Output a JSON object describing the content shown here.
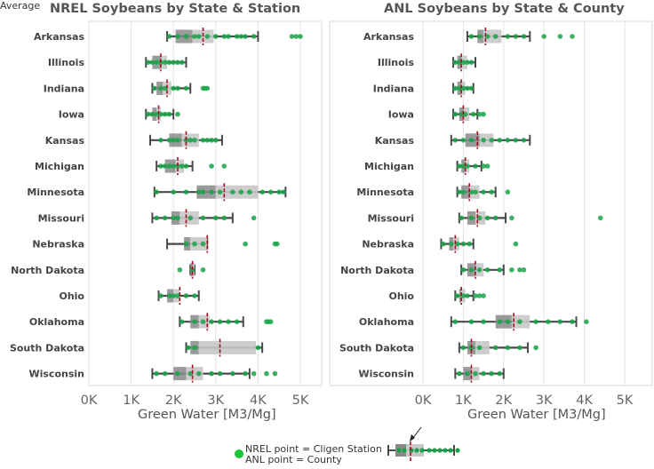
{
  "chart_data": [
    {
      "type": "boxplot",
      "title": "NREL Soybeans by State & Station",
      "xlabel": "Green Water [M3/Mg]",
      "x_ticks": [
        "0K",
        "1K",
        "2K",
        "3K",
        "4K",
        "5K"
      ],
      "xlim": [
        0,
        5300
      ],
      "grid": true,
      "rows": [
        {
          "state": "Arkansas",
          "whisker_low": 1850,
          "q1": 2050,
          "median": 2450,
          "q3": 2950,
          "whisker_high": 4000,
          "mean": 2700,
          "points": [
            1900,
            2100,
            2300,
            2500,
            2600,
            2800,
            3000,
            3200,
            3300,
            3500,
            3600,
            3700,
            3900,
            4800,
            4900,
            5000
          ]
        },
        {
          "state": "Illinois",
          "whisker_low": 1350,
          "q1": 1500,
          "median": 1700,
          "q3": 1850,
          "whisker_high": 2300,
          "mean": 1700,
          "points": [
            1400,
            1500,
            1600,
            1700,
            1800,
            1900,
            2000,
            2100,
            2200
          ]
        },
        {
          "state": "Indiana",
          "whisker_low": 1500,
          "q1": 1600,
          "median": 1750,
          "q3": 1950,
          "whisker_high": 2400,
          "mean": 1850,
          "points": [
            1550,
            1700,
            1800,
            2000,
            2100,
            2300,
            2700,
            2750,
            2800
          ]
        },
        {
          "state": "Iowa",
          "whisker_low": 1350,
          "q1": 1500,
          "median": 1600,
          "q3": 1700,
          "whisker_high": 2000,
          "mean": 1650,
          "points": [
            1400,
            1500,
            1600,
            1700,
            1800,
            1900,
            2100
          ]
        },
        {
          "state": "Kansas",
          "whisker_low": 1450,
          "q1": 1900,
          "median": 2200,
          "q3": 2600,
          "whisker_high": 3150,
          "mean": 2300,
          "points": [
            1700,
            1900,
            2000,
            2100,
            2300,
            2400,
            2500,
            2700,
            2800,
            2900,
            3000
          ]
        },
        {
          "state": "Michigan",
          "whisker_low": 1600,
          "q1": 1800,
          "median": 2050,
          "q3": 2250,
          "whisker_high": 2450,
          "mean": 2100,
          "points": [
            1700,
            1800,
            1900,
            2000,
            2100,
            2200,
            2300,
            2900,
            3200
          ]
        },
        {
          "state": "Minnesota",
          "whisker_low": 1550,
          "q1": 2550,
          "median": 3000,
          "q3": 4000,
          "whisker_high": 4650,
          "mean": 3200,
          "points": [
            1600,
            2000,
            2300,
            2600,
            2700,
            2900,
            3100,
            3400,
            3600,
            3800,
            4100,
            4300,
            4500,
            4600
          ]
        },
        {
          "state": "Missouri",
          "whisker_low": 1500,
          "q1": 1950,
          "median": 2150,
          "q3": 2600,
          "whisker_high": 3400,
          "mean": 2300,
          "points": [
            1600,
            1800,
            2000,
            2100,
            2400,
            2700,
            3000,
            3200,
            3900
          ]
        },
        {
          "state": "Nebraska",
          "whisker_low": 1850,
          "q1": 2250,
          "median": 2400,
          "q3": 2800,
          "whisker_high": 2800,
          "mean": 2800,
          "points": [
            2300,
            2500,
            2700,
            3700,
            4400,
            4450
          ]
        },
        {
          "state": "North Dakota",
          "whisker_low": 2400,
          "q1": 2400,
          "median": 2450,
          "q3": 2500,
          "whisker_high": 2500,
          "mean": 2450,
          "points": [
            2150,
            2450,
            2700
          ]
        },
        {
          "state": "Ohio",
          "whisker_low": 1650,
          "q1": 1850,
          "median": 2000,
          "q3": 2150,
          "whisker_high": 2600,
          "mean": 2150,
          "points": [
            1700,
            1900,
            2000,
            2100,
            2300,
            2500
          ]
        },
        {
          "state": "Oklahoma",
          "whisker_low": 2150,
          "q1": 2400,
          "median": 2600,
          "q3": 2850,
          "whisker_high": 3650,
          "mean": 2800,
          "points": [
            2200,
            2500,
            2700,
            2900,
            3100,
            3300,
            3500,
            4200,
            4250,
            4300
          ]
        },
        {
          "state": "South Dakota",
          "whisker_low": 2300,
          "q1": 2400,
          "median": 2600,
          "q3": 3950,
          "whisker_high": 4100,
          "mean": 3100,
          "points": [
            2350,
            2500,
            4000
          ]
        },
        {
          "state": "Wisconsin",
          "whisker_low": 1500,
          "q1": 2000,
          "median": 2300,
          "q3": 2700,
          "whisker_high": 3800,
          "mean": 2450,
          "points": [
            1600,
            1800,
            2100,
            2400,
            2600,
            2900,
            3100,
            3400,
            3700,
            3900,
            4200,
            4400
          ]
        }
      ]
    },
    {
      "type": "boxplot",
      "title": "ANL Soybeans by State & County",
      "xlabel": "Green Water [M3/Mg]",
      "x_ticks": [
        "0K",
        "1K",
        "2K",
        "3K",
        "4K",
        "5K"
      ],
      "xlim": [
        0,
        5500
      ],
      "grid": true,
      "rows": [
        {
          "state": "Arkansas",
          "whisker_low": 1100,
          "q1": 1350,
          "median": 1500,
          "q3": 1950,
          "whisker_high": 2650,
          "mean": 1550,
          "points": [
            1200,
            1400,
            1600,
            1800,
            2100,
            2300,
            2500,
            3000,
            3400,
            3700
          ]
        },
        {
          "state": "Illinois",
          "whisker_low": 750,
          "q1": 850,
          "median": 950,
          "q3": 1100,
          "whisker_high": 1300,
          "mean": 950,
          "points": [
            800,
            900,
            1000,
            1100,
            1200
          ]
        },
        {
          "state": "Indiana",
          "whisker_low": 750,
          "q1": 850,
          "median": 950,
          "q3": 1050,
          "whisker_high": 1250,
          "mean": 950,
          "points": [
            800,
            900,
            1000,
            1100,
            1200
          ]
        },
        {
          "state": "Iowa",
          "whisker_low": 750,
          "q1": 900,
          "median": 1000,
          "q3": 1150,
          "whisker_high": 1350,
          "mean": 1000,
          "points": [
            800,
            950,
            1050,
            1250,
            1400,
            1500
          ]
        },
        {
          "state": "Kansas",
          "whisker_low": 700,
          "q1": 1050,
          "median": 1400,
          "q3": 1750,
          "whisker_high": 2650,
          "mean": 1350,
          "points": [
            800,
            1000,
            1200,
            1500,
            1700,
            1900,
            2100,
            2300,
            2500
          ]
        },
        {
          "state": "Michigan",
          "whisker_low": 850,
          "q1": 950,
          "median": 1050,
          "q3": 1150,
          "whisker_high": 1450,
          "mean": 1050,
          "points": [
            900,
            1000,
            1100,
            1300,
            1500,
            1600
          ]
        },
        {
          "state": "Minnesota",
          "whisker_low": 850,
          "q1": 950,
          "median": 1150,
          "q3": 1400,
          "whisker_high": 1800,
          "mean": 1150,
          "points": [
            900,
            1000,
            1200,
            1300,
            1500,
            1700,
            2100
          ]
        },
        {
          "state": "Missouri",
          "whisker_low": 900,
          "q1": 1100,
          "median": 1300,
          "q3": 1550,
          "whisker_high": 2050,
          "mean": 1350,
          "points": [
            950,
            1200,
            1400,
            1600,
            1800,
            2200,
            4400
          ]
        },
        {
          "state": "Nebraska",
          "whisker_low": 450,
          "q1": 650,
          "median": 750,
          "q3": 900,
          "whisker_high": 1250,
          "mean": 800,
          "points": [
            500,
            700,
            850,
            1000,
            1150,
            2300
          ]
        },
        {
          "state": "North Dakota",
          "whisker_low": 950,
          "q1": 1100,
          "median": 1300,
          "q3": 1500,
          "whisker_high": 2000,
          "mean": 1300,
          "points": [
            1000,
            1200,
            1400,
            1600,
            1900,
            2200,
            2400,
            2500
          ]
        },
        {
          "state": "Ohio",
          "whisker_low": 800,
          "q1": 900,
          "median": 950,
          "q3": 1050,
          "whisker_high": 1250,
          "mean": 950,
          "points": [
            850,
            1000,
            1100,
            1300,
            1400,
            1500
          ]
        },
        {
          "state": "Oklahoma",
          "whisker_low": 700,
          "q1": 1800,
          "median": 2200,
          "q3": 2650,
          "whisker_high": 3800,
          "mean": 2250,
          "points": [
            800,
            1200,
            1500,
            1900,
            2100,
            2400,
            2800,
            3100,
            3400,
            3700,
            4050
          ]
        },
        {
          "state": "South Dakota",
          "whisker_low": 900,
          "q1": 1100,
          "median": 1300,
          "q3": 1650,
          "whisker_high": 2600,
          "mean": 1200,
          "points": [
            1000,
            1200,
            1400,
            1800,
            2100,
            2400,
            2800
          ]
        },
        {
          "state": "Wisconsin",
          "whisker_low": 800,
          "q1": 1000,
          "median": 1200,
          "q3": 1400,
          "whisker_high": 2000,
          "mean": 1200,
          "points": [
            900,
            1100,
            1300,
            1500,
            1700,
            1900
          ]
        }
      ]
    }
  ],
  "legend": {
    "average_label": "Average",
    "line1": "NREL point = Cligen Station",
    "line2": "ANL point = County"
  },
  "colors": {
    "point": "#1aa24a",
    "mean_line": "#a01020",
    "box_dark": "#8a8a8a",
    "box_light": "#c8c8c8",
    "whisker": "#4a4a4a",
    "grid": "#e3e3e3"
  }
}
